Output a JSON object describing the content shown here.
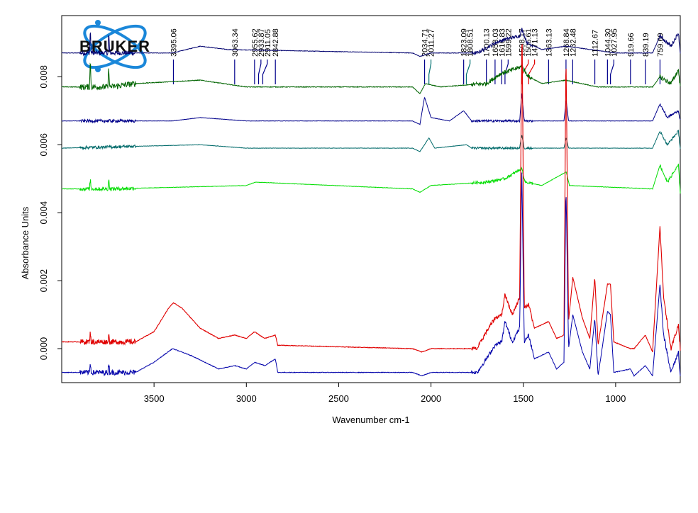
{
  "logo": {
    "text": "BRUKER"
  },
  "chart_data": {
    "type": "line",
    "xlabel": "Wavenumber cm-1",
    "ylabel": "Absorbance Units",
    "xlim": [
      4000,
      650
    ],
    "ylim": [
      -0.001,
      0.0098
    ],
    "x_ticks": [
      3500,
      3000,
      2500,
      2000,
      1500,
      1000
    ],
    "y_ticks": [
      {
        "value": 0.0,
        "label": "0.000"
      },
      {
        "value": 0.002,
        "label": "0.002"
      },
      {
        "value": 0.004,
        "label": "0.004"
      },
      {
        "value": 0.006,
        "label": "0.006"
      },
      {
        "value": 0.008,
        "label": "0.008"
      }
    ],
    "peak_labels": [
      {
        "x": 3395.06,
        "label": "3395.06",
        "color": "#00008b"
      },
      {
        "x": 3063.34,
        "label": "3063.34",
        "color": "#00008b"
      },
      {
        "x": 2955.62,
        "label": "2955.62",
        "color": "#00008b"
      },
      {
        "x": 2933.87,
        "label": "2933.87",
        "color": "#00008b"
      },
      {
        "x": 2911.05,
        "label": "2911.05",
        "color": "#00008b"
      },
      {
        "x": 2842.88,
        "label": "2842.88",
        "color": "#00008b"
      },
      {
        "x": 2034.71,
        "label": "2034.71",
        "color": "#00008b"
      },
      {
        "x": 2011.27,
        "label": "2011.27",
        "color": "#007070"
      },
      {
        "x": 1823.09,
        "label": "1823.09",
        "color": "#00008b"
      },
      {
        "x": 1808.51,
        "label": "1808.51",
        "color": "#007070"
      },
      {
        "x": 1700.13,
        "label": "1700.13",
        "color": "#00008b"
      },
      {
        "x": 1653.03,
        "label": "1653.03",
        "color": "#00008b"
      },
      {
        "x": 1616.83,
        "label": "1616.83",
        "color": "#00008b"
      },
      {
        "x": 1599.22,
        "label": "1599.22",
        "color": "#00008b"
      },
      {
        "x": 1508.17,
        "label": "1508.17",
        "color": "#00a000"
      },
      {
        "x": 1506.61,
        "label": "1506.61",
        "color": "#e00000"
      },
      {
        "x": 1471.13,
        "label": "1471.13",
        "color": "#e00000"
      },
      {
        "x": 1363.13,
        "label": "1363.13",
        "color": "#00008b"
      },
      {
        "x": 1268.84,
        "label": "1268.84",
        "color": "#00008b"
      },
      {
        "x": 1232.48,
        "label": "1232.48",
        "color": "#00008b"
      },
      {
        "x": 1112.67,
        "label": "1112.67",
        "color": "#00008b"
      },
      {
        "x": 1044.3,
        "label": "1044.30",
        "color": "#00008b"
      },
      {
        "x": 1027.95,
        "label": "1027.95",
        "color": "#00008b"
      },
      {
        "x": 919.66,
        "label": "919.66",
        "color": "#00008b"
      },
      {
        "x": 839.19,
        "label": "839.19",
        "color": "#00008b"
      },
      {
        "x": 759.69,
        "label": "759.69",
        "color": "#00008b"
      }
    ],
    "series": [
      {
        "color": "#00006e",
        "baseline": 0.0087,
        "noise": 6e-05,
        "points": [
          [
            4000,
            0.0087
          ],
          [
            3850,
            0.0087
          ],
          [
            3845,
            0.0094
          ],
          [
            3840,
            0.0087
          ],
          [
            3750,
            0.0087
          ],
          [
            3745,
            0.0093
          ],
          [
            3740,
            0.0087
          ],
          [
            3400,
            0.0087
          ],
          [
            3250,
            0.0089
          ],
          [
            3100,
            0.0088
          ],
          [
            2100,
            0.0087
          ],
          [
            2060,
            0.0086
          ],
          [
            2000,
            0.0087
          ],
          [
            1750,
            0.0087
          ],
          [
            1650,
            0.009
          ],
          [
            1600,
            0.0091
          ],
          [
            1520,
            0.0092
          ],
          [
            1508,
            0.0094
          ],
          [
            1480,
            0.009
          ],
          [
            1400,
            0.0088
          ],
          [
            1270,
            0.0089
          ],
          [
            1000,
            0.0087
          ],
          [
            800,
            0.0087
          ],
          [
            760,
            0.0092
          ],
          [
            700,
            0.0089
          ],
          [
            660,
            0.0093
          ],
          [
            650,
            0.0087
          ]
        ]
      },
      {
        "color": "#006400",
        "baseline": 0.0077,
        "noise": 8e-05,
        "points": [
          [
            4000,
            0.0077
          ],
          [
            3850,
            0.0077
          ],
          [
            3845,
            0.0085
          ],
          [
            3840,
            0.0077
          ],
          [
            3750,
            0.0077
          ],
          [
            3745,
            0.0083
          ],
          [
            3740,
            0.0077
          ],
          [
            3600,
            0.0078
          ],
          [
            3250,
            0.0079
          ],
          [
            3000,
            0.0077
          ],
          [
            2100,
            0.0077
          ],
          [
            2060,
            0.0075
          ],
          [
            2030,
            0.0078
          ],
          [
            1950,
            0.0077
          ],
          [
            1700,
            0.0078
          ],
          [
            1620,
            0.0081
          ],
          [
            1560,
            0.0082
          ],
          [
            1510,
            0.0083
          ],
          [
            1470,
            0.008
          ],
          [
            1400,
            0.0078
          ],
          [
            1270,
            0.0079
          ],
          [
            1100,
            0.0077
          ],
          [
            800,
            0.0077
          ],
          [
            760,
            0.008
          ],
          [
            700,
            0.0078
          ],
          [
            660,
            0.0082
          ],
          [
            650,
            0.0077
          ]
        ]
      },
      {
        "color": "#00008b",
        "baseline": 0.0067,
        "noise": 4e-05,
        "points": [
          [
            4000,
            0.0067
          ],
          [
            3400,
            0.0067
          ],
          [
            3250,
            0.0068
          ],
          [
            3000,
            0.0067
          ],
          [
            2100,
            0.0067
          ],
          [
            2060,
            0.0066
          ],
          [
            2035,
            0.0074
          ],
          [
            2000,
            0.0068
          ],
          [
            1900,
            0.0067
          ],
          [
            1823,
            0.007
          ],
          [
            1780,
            0.0067
          ],
          [
            1520,
            0.0067
          ],
          [
            1508,
            0.0075
          ],
          [
            1495,
            0.0067
          ],
          [
            1280,
            0.0067
          ],
          [
            1268,
            0.0073
          ],
          [
            1255,
            0.0067
          ],
          [
            800,
            0.0067
          ],
          [
            760,
            0.0072
          ],
          [
            720,
            0.0068
          ],
          [
            660,
            0.007
          ],
          [
            650,
            0.0067
          ]
        ]
      },
      {
        "color": "#006a6a",
        "baseline": 0.0059,
        "noise": 4e-05,
        "points": [
          [
            4000,
            0.0059
          ],
          [
            3250,
            0.006
          ],
          [
            3000,
            0.0059
          ],
          [
            2100,
            0.0059
          ],
          [
            2060,
            0.0058
          ],
          [
            2011,
            0.0062
          ],
          [
            1980,
            0.0059
          ],
          [
            1808,
            0.006
          ],
          [
            1780,
            0.0059
          ],
          [
            1520,
            0.0059
          ],
          [
            1508,
            0.0063
          ],
          [
            1495,
            0.0059
          ],
          [
            1280,
            0.0059
          ],
          [
            1268,
            0.0062
          ],
          [
            1255,
            0.0059
          ],
          [
            800,
            0.0059
          ],
          [
            760,
            0.0064
          ],
          [
            720,
            0.006
          ],
          [
            660,
            0.0064
          ],
          [
            650,
            0.0059
          ]
        ]
      },
      {
        "color": "#00dd00",
        "baseline": 0.0047,
        "noise": 5e-05,
        "points": [
          [
            4000,
            0.0047
          ],
          [
            3850,
            0.0047
          ],
          [
            3845,
            0.005
          ],
          [
            3840,
            0.0047
          ],
          [
            3750,
            0.0047
          ],
          [
            3745,
            0.005
          ],
          [
            3740,
            0.0047
          ],
          [
            3000,
            0.0048
          ],
          [
            2950,
            0.0049
          ],
          [
            2100,
            0.0047
          ],
          [
            2060,
            0.0046
          ],
          [
            2000,
            0.0048
          ],
          [
            1700,
            0.0049
          ],
          [
            1600,
            0.005
          ],
          [
            1508,
            0.0053
          ],
          [
            1490,
            0.0049
          ],
          [
            1400,
            0.0048
          ],
          [
            1268,
            0.0052
          ],
          [
            1250,
            0.0048
          ],
          [
            800,
            0.0047
          ],
          [
            760,
            0.0054
          ],
          [
            720,
            0.0049
          ],
          [
            660,
            0.0054
          ],
          [
            650,
            0.0046
          ]
        ]
      },
      {
        "color": "#e00000",
        "baseline": 0.0002,
        "noise": 7e-05,
        "points": [
          [
            4000,
            0.0002
          ],
          [
            3850,
            0.0002
          ],
          [
            3845,
            0.0005
          ],
          [
            3840,
            0.0002
          ],
          [
            3750,
            0.0002
          ],
          [
            3745,
            0.0004
          ],
          [
            3740,
            0.0002
          ],
          [
            3600,
            0.0002
          ],
          [
            3500,
            0.0005
          ],
          [
            3420,
            0.0012
          ],
          [
            3395,
            0.00135
          ],
          [
            3350,
            0.0012
          ],
          [
            3250,
            0.0006
          ],
          [
            3150,
            0.0003
          ],
          [
            3063,
            0.0004
          ],
          [
            3000,
            0.0003
          ],
          [
            2955,
            0.0005
          ],
          [
            2930,
            0.0004
          ],
          [
            2900,
            0.0003
          ],
          [
            2843,
            0.0004
          ],
          [
            2830,
            0.0001
          ],
          [
            2100,
            0.0
          ],
          [
            2050,
            -0.0001
          ],
          [
            2000,
            0.0
          ],
          [
            1750,
            0.0
          ],
          [
            1700,
            0.0005
          ],
          [
            1653,
            0.0009
          ],
          [
            1617,
            0.001
          ],
          [
            1599,
            0.0016
          ],
          [
            1560,
            0.001
          ],
          [
            1520,
            0.0015
          ],
          [
            1507,
            0.0096
          ],
          [
            1495,
            0.0012
          ],
          [
            1471,
            0.0013
          ],
          [
            1440,
            0.0006
          ],
          [
            1363,
            0.0008
          ],
          [
            1320,
            0.0003
          ],
          [
            1280,
            0.0004
          ],
          [
            1269,
            0.0088
          ],
          [
            1255,
            0.0008
          ],
          [
            1232,
            0.0021
          ],
          [
            1180,
            0.0009
          ],
          [
            1140,
            0.0003
          ],
          [
            1113,
            0.0021
          ],
          [
            1095,
            0.0001
          ],
          [
            1044,
            0.0019
          ],
          [
            1028,
            0.0019
          ],
          [
            1010,
            0.0002
          ],
          [
            920,
            0.0
          ],
          [
            900,
            0.0
          ],
          [
            839,
            0.0004
          ],
          [
            800,
            -0.0001
          ],
          [
            760,
            0.0036
          ],
          [
            740,
            0.0015
          ],
          [
            700,
            0.0
          ],
          [
            660,
            0.0007
          ],
          [
            650,
            0.0
          ]
        ]
      },
      {
        "color": "#0000aa",
        "baseline": -0.0007,
        "noise": 7e-05,
        "points": [
          [
            4000,
            -0.0007
          ],
          [
            3850,
            -0.0007
          ],
          [
            3845,
            -0.0004
          ],
          [
            3840,
            -0.0007
          ],
          [
            3750,
            -0.0007
          ],
          [
            3745,
            -0.0004
          ],
          [
            3740,
            -0.0007
          ],
          [
            3600,
            -0.0007
          ],
          [
            3500,
            -0.0004
          ],
          [
            3400,
            0.0
          ],
          [
            3300,
            -0.0002
          ],
          [
            3150,
            -0.0006
          ],
          [
            3063,
            -0.0005
          ],
          [
            3000,
            -0.0006
          ],
          [
            2955,
            -0.0004
          ],
          [
            2900,
            -0.0005
          ],
          [
            2843,
            -0.0003
          ],
          [
            2830,
            -0.0007
          ],
          [
            2100,
            -0.0007
          ],
          [
            2050,
            -0.0008
          ],
          [
            2000,
            -0.0007
          ],
          [
            1750,
            -0.0007
          ],
          [
            1700,
            -0.0003
          ],
          [
            1653,
            0.0001
          ],
          [
            1617,
            0.0002
          ],
          [
            1599,
            0.0008
          ],
          [
            1560,
            0.0002
          ],
          [
            1520,
            0.0006
          ],
          [
            1508,
            0.0052
          ],
          [
            1495,
            0.0002
          ],
          [
            1471,
            0.0004
          ],
          [
            1440,
            -0.0003
          ],
          [
            1363,
            -0.0001
          ],
          [
            1320,
            -0.0006
          ],
          [
            1280,
            -0.0004
          ],
          [
            1269,
            0.0048
          ],
          [
            1255,
            0.0
          ],
          [
            1232,
            0.001
          ],
          [
            1180,
            -0.0001
          ],
          [
            1140,
            -0.0006
          ],
          [
            1113,
            0.0009
          ],
          [
            1095,
            -0.0008
          ],
          [
            1044,
            0.0011
          ],
          [
            1028,
            0.001
          ],
          [
            1010,
            -0.0007
          ],
          [
            920,
            -0.0006
          ],
          [
            900,
            -0.0008
          ],
          [
            839,
            -0.0005
          ],
          [
            800,
            -0.0008
          ],
          [
            760,
            0.0019
          ],
          [
            740,
            0.0004
          ],
          [
            700,
            -0.0007
          ],
          [
            660,
            -0.0001
          ],
          [
            650,
            -0.0008
          ]
        ]
      }
    ]
  }
}
